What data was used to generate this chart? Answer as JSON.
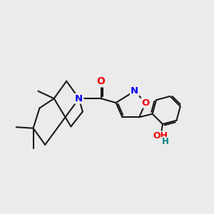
{
  "background_color": "#ebebeb",
  "bond_color": "#1a1a1a",
  "bond_width": 1.5,
  "atom_colors": {
    "N": "#0000ee",
    "O": "#ee0000",
    "OH_O": "#ee0000",
    "OH_H": "#008080",
    "C": "#1a1a1a"
  },
  "figsize": [
    3.0,
    3.0
  ],
  "dpi": 100
}
